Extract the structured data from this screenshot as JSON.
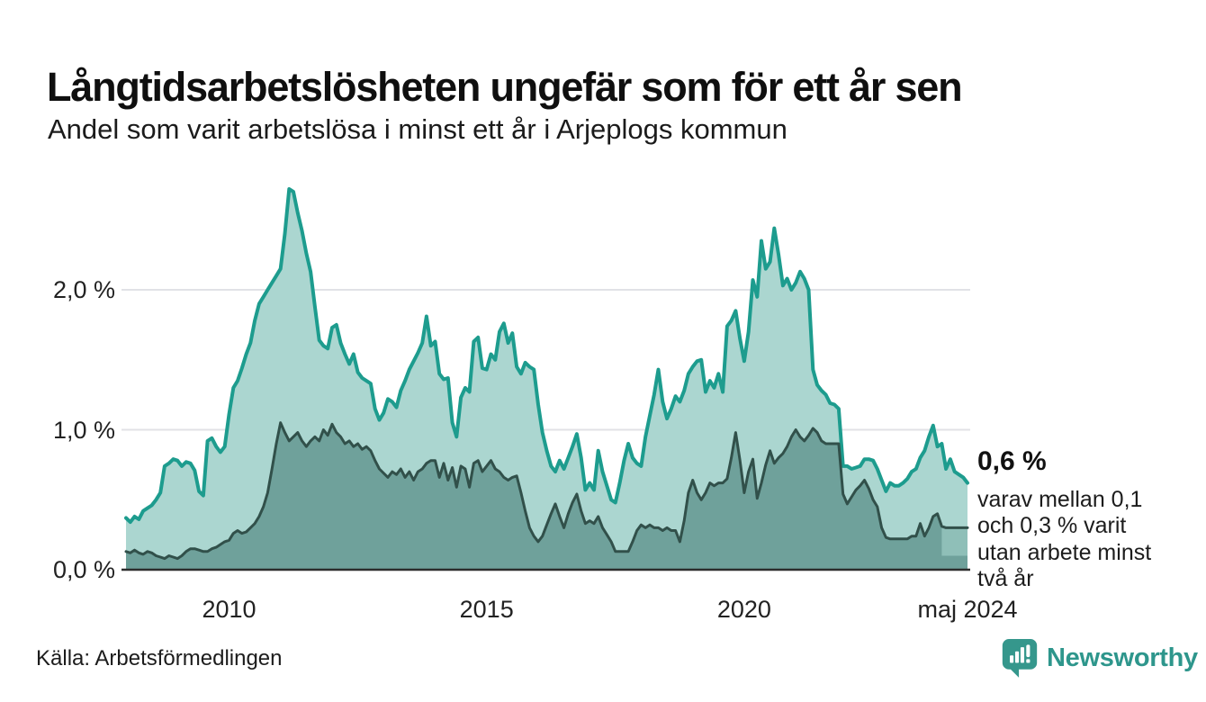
{
  "header": {
    "title": "Långtidsarbetslösheten ungefär som för ett år sen",
    "subtitle": "Andel som varit arbetslösa i minst ett år i Arjeplogs kommun"
  },
  "annotation": {
    "value": "0,6 %",
    "note": "varav mellan 0,1 och 0,3 % varit utan arbete minst två år"
  },
  "footer": {
    "source": "Källa: Arbetsförmedlingen",
    "brand": "Newsworthy",
    "logo_icon": "bar-chart-speech-bubble-icon"
  },
  "colors": {
    "accent_teal": "#1d9c8e",
    "area_light": "#abd6d0",
    "area_dark": "#6fa19b",
    "line_dark": "#31504a",
    "band": "#8fbfb8",
    "grid": "#e1e2e6",
    "axis": "#2d2d2d",
    "brand_teal": "#2e968c"
  },
  "chart_data": {
    "type": "area",
    "title": "Långtidsarbetslösheten ungefär som för ett år sen",
    "subtitle": "Andel som varit arbetslösa i minst ett år i Arjeplogs kommun",
    "unit": "%",
    "frequency": "monthly",
    "x_start": "2008-01",
    "x_end": "2024-05",
    "ylim": [
      0,
      2.82
    ],
    "grid": "horizontal",
    "legend_position": "none",
    "yticks": [
      {
        "value": 0,
        "label": "0,0 %"
      },
      {
        "value": 1,
        "label": "1,0 %"
      },
      {
        "value": 2,
        "label": "2,0 %"
      }
    ],
    "xticks": [
      {
        "index": 24,
        "label": "2010"
      },
      {
        "index": 84,
        "label": "2015"
      },
      {
        "index": 144,
        "label": "2020"
      },
      {
        "index": 196,
        "label": "maj 2024"
      }
    ],
    "series": [
      {
        "name": "minst ett år",
        "values": [
          0.37,
          0.34,
          0.38,
          0.36,
          0.42,
          0.44,
          0.46,
          0.5,
          0.55,
          0.74,
          0.76,
          0.79,
          0.78,
          0.74,
          0.77,
          0.76,
          0.71,
          0.56,
          0.53,
          0.92,
          0.94,
          0.88,
          0.84,
          0.88,
          1.11,
          1.3,
          1.35,
          1.44,
          1.54,
          1.62,
          1.78,
          1.9,
          1.95,
          2.0,
          2.05,
          2.1,
          2.15,
          2.4,
          2.72,
          2.7,
          2.55,
          2.42,
          2.26,
          2.13,
          1.88,
          1.64,
          1.6,
          1.58,
          1.73,
          1.75,
          1.62,
          1.54,
          1.47,
          1.54,
          1.41,
          1.37,
          1.35,
          1.33,
          1.15,
          1.07,
          1.12,
          1.22,
          1.2,
          1.16,
          1.28,
          1.35,
          1.43,
          1.49,
          1.55,
          1.62,
          1.81,
          1.6,
          1.63,
          1.4,
          1.36,
          1.37,
          1.05,
          0.95,
          1.23,
          1.3,
          1.27,
          1.63,
          1.66,
          1.44,
          1.43,
          1.54,
          1.5,
          1.7,
          1.76,
          1.62,
          1.69,
          1.45,
          1.4,
          1.48,
          1.45,
          1.43,
          1.18,
          0.98,
          0.85,
          0.74,
          0.7,
          0.78,
          0.72,
          0.8,
          0.88,
          0.97,
          0.8,
          0.57,
          0.62,
          0.57,
          0.85,
          0.7,
          0.6,
          0.5,
          0.48,
          0.62,
          0.78,
          0.9,
          0.8,
          0.76,
          0.74,
          0.95,
          1.1,
          1.25,
          1.43,
          1.2,
          1.08,
          1.15,
          1.24,
          1.2,
          1.28,
          1.4,
          1.45,
          1.49,
          1.5,
          1.27,
          1.35,
          1.3,
          1.4,
          1.27,
          1.74,
          1.78,
          1.85,
          1.65,
          1.49,
          1.7,
          2.07,
          1.95,
          2.35,
          2.15,
          2.2,
          2.44,
          2.25,
          2.03,
          2.08,
          2.0,
          2.05,
          2.13,
          2.08,
          2.0,
          1.43,
          1.32,
          1.28,
          1.25,
          1.19,
          1.18,
          1.15,
          0.74,
          0.74,
          0.72,
          0.73,
          0.74,
          0.79,
          0.79,
          0.78,
          0.72,
          0.64,
          0.56,
          0.62,
          0.6,
          0.6,
          0.62,
          0.65,
          0.7,
          0.72,
          0.8,
          0.85,
          0.95,
          1.03,
          0.88,
          0.9,
          0.72,
          0.79,
          0.7,
          0.68,
          0.66,
          0.62
        ]
      },
      {
        "name": "minst två år",
        "values": [
          0.13,
          0.12,
          0.14,
          0.12,
          0.11,
          0.13,
          0.12,
          0.1,
          0.09,
          0.08,
          0.1,
          0.09,
          0.08,
          0.1,
          0.13,
          0.15,
          0.15,
          0.14,
          0.13,
          0.13,
          0.15,
          0.16,
          0.18,
          0.2,
          0.21,
          0.26,
          0.28,
          0.26,
          0.27,
          0.3,
          0.33,
          0.38,
          0.45,
          0.55,
          0.72,
          0.9,
          1.05,
          0.98,
          0.92,
          0.95,
          0.98,
          0.92,
          0.88,
          0.92,
          0.95,
          0.92,
          1.0,
          0.96,
          1.04,
          0.98,
          0.95,
          0.9,
          0.92,
          0.88,
          0.9,
          0.86,
          0.88,
          0.85,
          0.78,
          0.72,
          0.69,
          0.66,
          0.7,
          0.68,
          0.72,
          0.66,
          0.7,
          0.64,
          0.7,
          0.72,
          0.76,
          0.78,
          0.78,
          0.66,
          0.76,
          0.64,
          0.73,
          0.59,
          0.74,
          0.72,
          0.59,
          0.76,
          0.78,
          0.7,
          0.74,
          0.78,
          0.72,
          0.7,
          0.66,
          0.64,
          0.66,
          0.67,
          0.55,
          0.42,
          0.3,
          0.24,
          0.2,
          0.24,
          0.32,
          0.4,
          0.47,
          0.38,
          0.3,
          0.4,
          0.48,
          0.54,
          0.42,
          0.33,
          0.35,
          0.33,
          0.38,
          0.3,
          0.25,
          0.2,
          0.13,
          0.13,
          0.13,
          0.13,
          0.2,
          0.28,
          0.32,
          0.3,
          0.32,
          0.3,
          0.3,
          0.28,
          0.3,
          0.28,
          0.28,
          0.2,
          0.35,
          0.55,
          0.64,
          0.55,
          0.5,
          0.55,
          0.62,
          0.6,
          0.62,
          0.62,
          0.65,
          0.8,
          0.98,
          0.78,
          0.55,
          0.7,
          0.79,
          0.51,
          0.62,
          0.75,
          0.85,
          0.76,
          0.8,
          0.83,
          0.88,
          0.95,
          1.0,
          0.95,
          0.92,
          0.96,
          1.01,
          0.98,
          0.92,
          0.9,
          0.9,
          0.9,
          0.9,
          0.54,
          0.47,
          0.52,
          0.57,
          0.6,
          0.64,
          0.58,
          0.5,
          0.45,
          0.3,
          0.23,
          0.22,
          0.22,
          0.22,
          0.22,
          0.22,
          0.24,
          0.24,
          0.33,
          0.24,
          0.3,
          0.38,
          0.4,
          0.31,
          0.3,
          0.3,
          0.3,
          0.3,
          0.3,
          0.3
        ]
      }
    ],
    "uncertainty_band": {
      "series": "minst två år",
      "start_index": 190,
      "lower": 0.1,
      "upper_label": "0,3",
      "lower_label": "0,1"
    },
    "end_labels": [
      {
        "series": "minst ett år",
        "label": "0,6 %"
      }
    ]
  }
}
